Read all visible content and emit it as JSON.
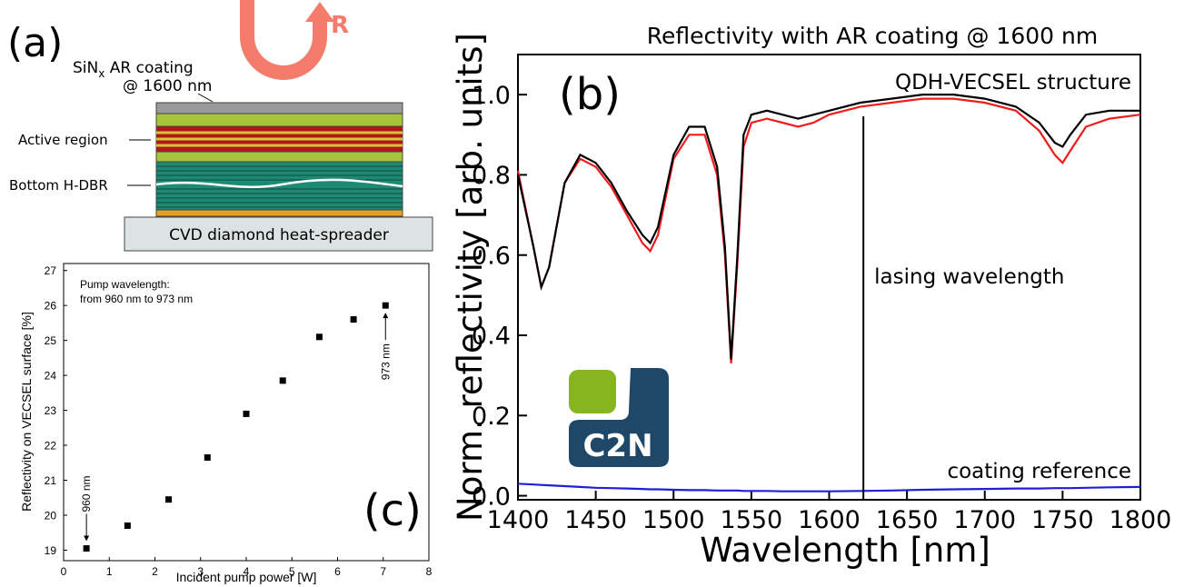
{
  "diagram": {
    "panel_label": "(a)",
    "coating_main": "SiN",
    "coating_sub": "x",
    "coating_rest": " AR coating",
    "coating_line2": "@ 1600 nm",
    "active": "Active region",
    "dbr": "Bottom H-DBR",
    "substrate": "CVD diamond heat-spreader",
    "arrow_label": "R"
  },
  "logo": "C2N",
  "chart_data": [
    {
      "type": "line",
      "title": "Reflectivity with AR coating @ 1600 nm",
      "panel_label": "(b)",
      "x_label": "Wavelength [nm]",
      "y_label": "Norm. reflectivity [arb. units]",
      "x": [
        1400,
        1410,
        1415,
        1420,
        1430,
        1440,
        1450,
        1460,
        1470,
        1480,
        1485,
        1490,
        1500,
        1510,
        1520,
        1528,
        1533,
        1537,
        1541,
        1545,
        1550,
        1560,
        1570,
        1580,
        1590,
        1600,
        1620,
        1640,
        1660,
        1680,
        1700,
        1720,
        1735,
        1745,
        1750,
        1755,
        1765,
        1780,
        1800
      ],
      "series": [
        {
          "name": "QDH-VECSEL structure",
          "color": "#000000",
          "values": [
            0.8,
            0.62,
            0.52,
            0.57,
            0.78,
            0.85,
            0.83,
            0.78,
            0.71,
            0.65,
            0.63,
            0.67,
            0.85,
            0.92,
            0.92,
            0.82,
            0.62,
            0.34,
            0.6,
            0.9,
            0.95,
            0.96,
            0.95,
            0.94,
            0.95,
            0.96,
            0.98,
            0.99,
            1.0,
            1.0,
            0.99,
            0.97,
            0.93,
            0.88,
            0.87,
            0.9,
            0.95,
            0.96,
            0.96
          ]
        },
        {
          "color": "#ee1c1c",
          "values": [
            0.81,
            0.62,
            0.52,
            0.57,
            0.78,
            0.84,
            0.82,
            0.77,
            0.7,
            0.63,
            0.61,
            0.65,
            0.84,
            0.9,
            0.9,
            0.8,
            0.6,
            0.33,
            0.58,
            0.87,
            0.93,
            0.94,
            0.93,
            0.92,
            0.93,
            0.95,
            0.97,
            0.98,
            0.99,
            0.99,
            0.98,
            0.96,
            0.91,
            0.85,
            0.83,
            0.86,
            0.92,
            0.94,
            0.95
          ]
        },
        {
          "name": "coating reference",
          "color": "#1f1fd6",
          "values": [
            0.03,
            0.028,
            0.027,
            0.026,
            0.024,
            0.022,
            0.02,
            0.019,
            0.018,
            0.017,
            0.016,
            0.016,
            0.015,
            0.014,
            0.014,
            0.013,
            0.013,
            0.013,
            0.013,
            0.012,
            0.012,
            0.012,
            0.011,
            0.011,
            0.011,
            0.011,
            0.012,
            0.013,
            0.015,
            0.016,
            0.017,
            0.018,
            0.018,
            0.019,
            0.019,
            0.019,
            0.02,
            0.021,
            0.022
          ]
        }
      ],
      "xlim": [
        1400,
        1800
      ],
      "xticks": [
        1400,
        1450,
        1500,
        1550,
        1600,
        1650,
        1700,
        1750,
        1800
      ],
      "ylim": [
        -0.01,
        1.1
      ],
      "yticks": [
        {
          "value": 0,
          "label": "0.0"
        },
        0.2,
        0.4,
        0.6,
        0.8,
        {
          "value": 1,
          "label": "1.0"
        }
      ],
      "lasing_wavelength": 1622,
      "lasing_label": "lasing wavelength",
      "grid": false
    },
    {
      "type": "scatter",
      "panel_label": "(c)",
      "color": "#000000",
      "x_label": "Incident pump power [W]",
      "y_label": "Reflectivity on VECSEL surface [%]",
      "note": [
        "Pump wavelength:",
        "from 960 nm to 973 nm"
      ],
      "first_label": "960 nm",
      "last_label": "973 nm",
      "x": [
        0.5,
        1.4,
        2.3,
        3.15,
        4.0,
        4.8,
        5.6,
        6.35,
        7.05
      ],
      "values": [
        19.05,
        19.7,
        20.45,
        21.65,
        22.9,
        23.85,
        25.1,
        25.6,
        26.0
      ],
      "xlim": [
        0,
        8
      ],
      "xticks": [
        0,
        1,
        2,
        3,
        4,
        5,
        6,
        7,
        8
      ],
      "ylim": [
        18.7,
        27.2
      ],
      "yticks": [
        19,
        20,
        21,
        22,
        23,
        24,
        25,
        26,
        27
      ],
      "grid": false
    }
  ]
}
